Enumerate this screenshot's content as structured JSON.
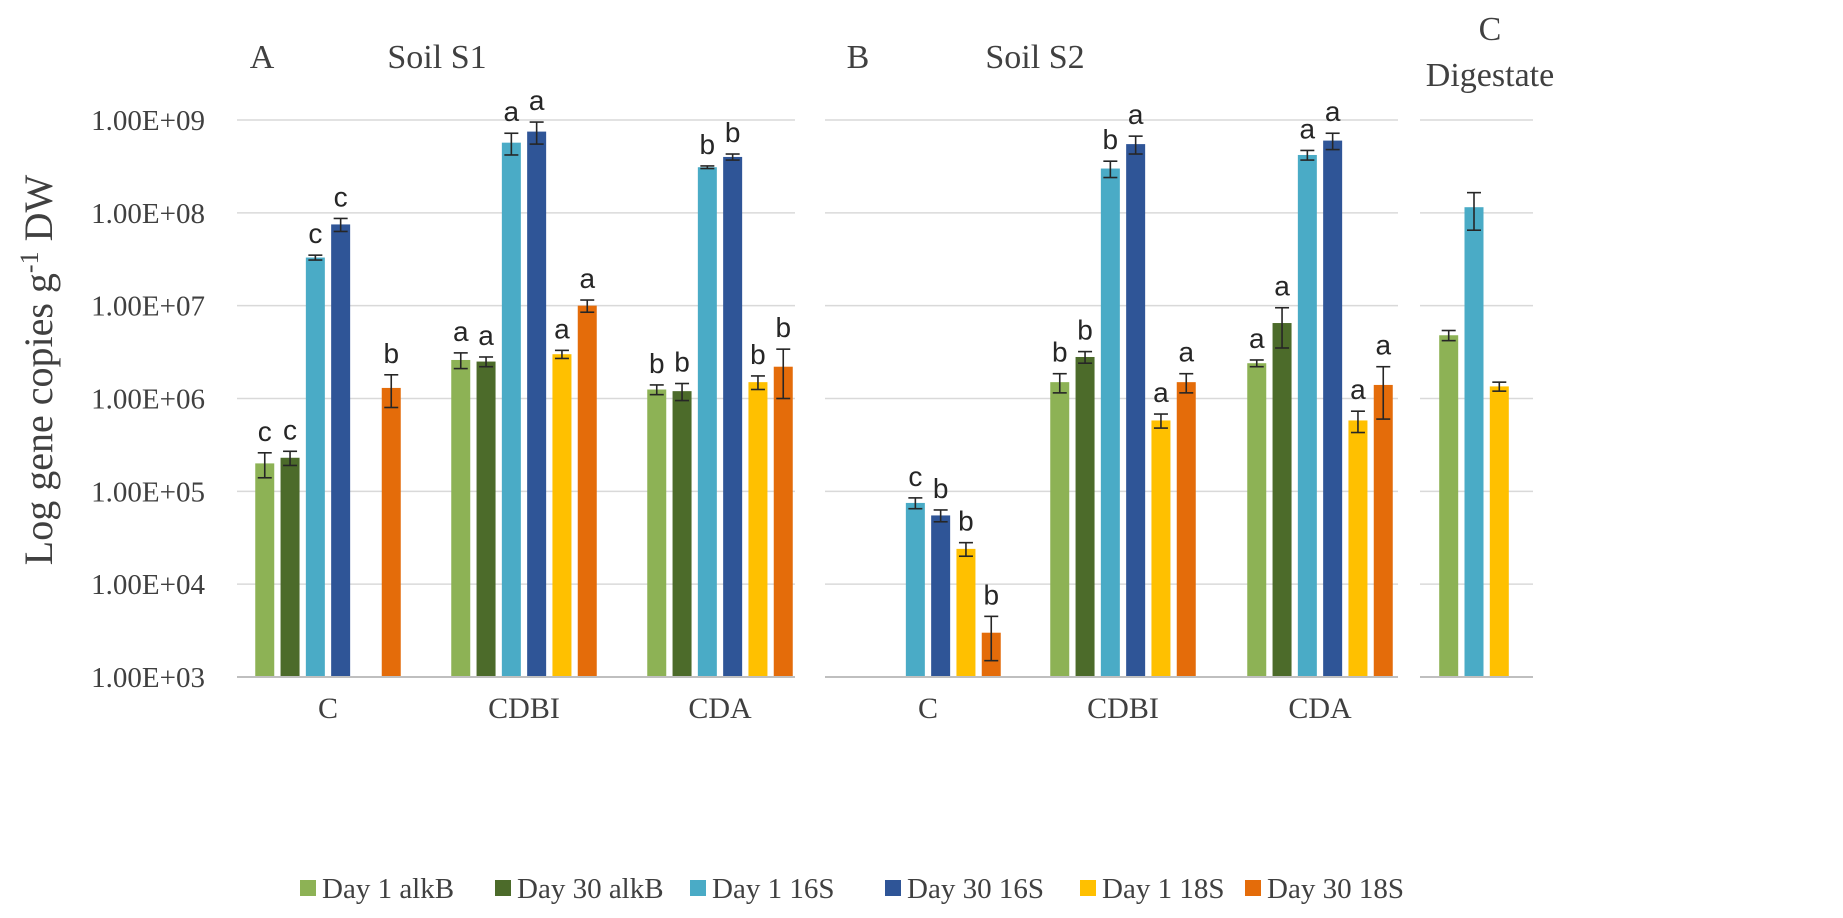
{
  "chart_data": {
    "type": "bar",
    "scale": "log",
    "ylabel_main": "Log gene copies g",
    "ylabel_sup": "-1",
    "ylabel_tail": " DW",
    "ylim": [
      1000,
      1000000000
    ],
    "yticks": [
      {
        "value": 1000,
        "label": "1.00E+03"
      },
      {
        "value": 10000,
        "label": "1.00E+04"
      },
      {
        "value": 100000,
        "label": "1.00E+05"
      },
      {
        "value": 1000000,
        "label": "1.00E+06"
      },
      {
        "value": 10000000,
        "label": "1.00E+07"
      },
      {
        "value": 100000000,
        "label": "1.00E+08"
      },
      {
        "value": 1000000000,
        "label": "1.00E+09"
      }
    ],
    "grid": true,
    "legend_position": "bottom",
    "series": [
      {
        "name": "Day 1 alkB",
        "color": "#8db255"
      },
      {
        "name": "Day 30 alkB",
        "color": "#4c6b2a"
      },
      {
        "name": "Day 1 16S",
        "color": "#4aabc6"
      },
      {
        "name": "Day 30 16S",
        "color": "#2f5597"
      },
      {
        "name": "Day 1 18S",
        "color": "#ffc000"
      },
      {
        "name": "Day 30 18S",
        "color": "#e46c0a"
      }
    ],
    "panels": [
      {
        "letter": "A",
        "title": "Soil S1",
        "groups": [
          {
            "category": "C",
            "bars": [
              {
                "series": 0,
                "value": 200000,
                "err": 60000,
                "letter": "c"
              },
              {
                "series": 1,
                "value": 230000,
                "err": 40000,
                "letter": "c"
              },
              {
                "series": 2,
                "value": 33000000,
                "err": 2000000,
                "letter": "c"
              },
              {
                "series": 3,
                "value": 75000000,
                "err": 12000000,
                "letter": "c"
              },
              {
                "series": 4,
                "value": null,
                "err": null,
                "letter": ""
              },
              {
                "series": 5,
                "value": 1300000,
                "err": 500000,
                "letter": "b"
              }
            ]
          },
          {
            "category": "CDBI",
            "bars": [
              {
                "series": 0,
                "value": 2600000,
                "err": 500000,
                "letter": "a"
              },
              {
                "series": 1,
                "value": 2500000,
                "err": 300000,
                "letter": "a"
              },
              {
                "series": 2,
                "value": 570000000,
                "err": 150000000,
                "letter": "a"
              },
              {
                "series": 3,
                "value": 750000000,
                "err": 200000000,
                "letter": "a"
              },
              {
                "series": 4,
                "value": 3000000,
                "err": 300000,
                "letter": "a"
              },
              {
                "series": 5,
                "value": 10000000,
                "err": 1500000,
                "letter": "a"
              }
            ]
          },
          {
            "category": "CDA",
            "bars": [
              {
                "series": 0,
                "value": 1250000,
                "err": 150000,
                "letter": "b"
              },
              {
                "series": 1,
                "value": 1200000,
                "err": 250000,
                "letter": "b"
              },
              {
                "series": 2,
                "value": 310000000,
                "err": 10000000,
                "letter": "b"
              },
              {
                "series": 3,
                "value": 400000000,
                "err": 30000000,
                "letter": "b"
              },
              {
                "series": 4,
                "value": 1500000,
                "err": 250000,
                "letter": "b"
              },
              {
                "series": 5,
                "value": 2200000,
                "err": 1200000,
                "letter": "b"
              }
            ]
          }
        ]
      },
      {
        "letter": "B",
        "title": "Soil S2",
        "groups": [
          {
            "category": "C",
            "bars": [
              {
                "series": 0,
                "value": null,
                "err": null,
                "letter": ""
              },
              {
                "series": 1,
                "value": null,
                "err": null,
                "letter": ""
              },
              {
                "series": 2,
                "value": 75000,
                "err": 10000,
                "letter": "c"
              },
              {
                "series": 3,
                "value": 55000,
                "err": 8000,
                "letter": "b"
              },
              {
                "series": 4,
                "value": 24000,
                "err": 4000,
                "letter": "b"
              },
              {
                "series": 5,
                "value": 3000,
                "err": 1500,
                "letter": "b"
              }
            ]
          },
          {
            "category": "CDBI",
            "bars": [
              {
                "series": 0,
                "value": 1500000,
                "err": 350000,
                "letter": "b"
              },
              {
                "series": 1,
                "value": 2800000,
                "err": 400000,
                "letter": "b"
              },
              {
                "series": 2,
                "value": 300000000,
                "err": 60000000,
                "letter": "b"
              },
              {
                "series": 3,
                "value": 550000000,
                "err": 120000000,
                "letter": "a"
              },
              {
                "series": 4,
                "value": 580000,
                "err": 100000,
                "letter": "a"
              },
              {
                "series": 5,
                "value": 1500000,
                "err": 350000,
                "letter": "a"
              }
            ]
          },
          {
            "category": "CDA",
            "bars": [
              {
                "series": 0,
                "value": 2400000,
                "err": 200000,
                "letter": "a"
              },
              {
                "series": 1,
                "value": 6500000,
                "err": 3000000,
                "letter": "a"
              },
              {
                "series": 2,
                "value": 420000000,
                "err": 50000000,
                "letter": "a"
              },
              {
                "series": 3,
                "value": 600000000,
                "err": 120000000,
                "letter": "a"
              },
              {
                "series": 4,
                "value": 580000,
                "err": 150000,
                "letter": "a"
              },
              {
                "series": 5,
                "value": 1400000,
                "err": 800000,
                "letter": "a"
              }
            ]
          }
        ]
      },
      {
        "letter": "C",
        "title": "Digestate",
        "groups": [
          {
            "category": "",
            "bars": [
              {
                "series": 0,
                "value": 4800000,
                "err": 600000,
                "letter": ""
              },
              {
                "series": 2,
                "value": 115000000,
                "err": 50000000,
                "letter": ""
              },
              {
                "series": 4,
                "value": 1350000,
                "err": 150000,
                "letter": ""
              }
            ]
          }
        ]
      }
    ]
  }
}
